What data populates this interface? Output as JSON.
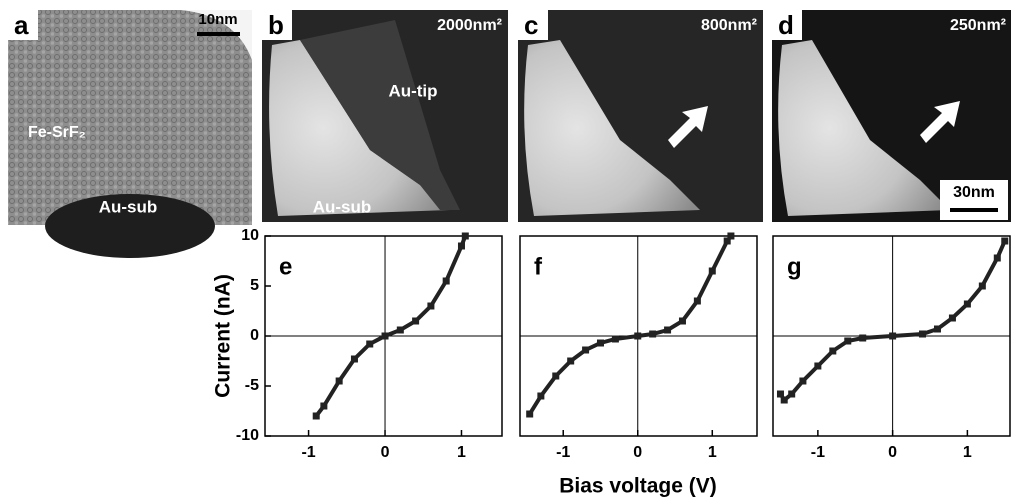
{
  "panels": [
    {
      "label": "a",
      "scale": "10nm",
      "texts": [
        "Fe-SrF₂",
        "Au-sub"
      ]
    },
    {
      "label": "b",
      "area": "2000nm²",
      "texts": [
        "Au-tip",
        "Au-sub"
      ]
    },
    {
      "label": "c",
      "area": "800nm²"
    },
    {
      "label": "d",
      "area": "250nm²",
      "scale": "30nm"
    }
  ],
  "y_label": "Current (nA)",
  "x_label": "Bias voltage (V)",
  "chart_data": [
    {
      "type": "scatter",
      "title": "e",
      "color": "#222222",
      "x": [
        -0.9,
        -0.8,
        -0.6,
        -0.4,
        -0.2,
        0,
        0.2,
        0.4,
        0.6,
        0.8,
        1.0,
        1.05
      ],
      "values": [
        -8,
        -7,
        -4.5,
        -2.3,
        -0.8,
        0,
        0.6,
        1.5,
        3,
        5.5,
        9,
        10
      ],
      "xlim": [
        -1.57,
        1.53
      ],
      "ylim": [
        -10,
        10
      ],
      "xticks": [
        -1,
        0,
        1
      ],
      "yticks": [
        -10,
        -5,
        0,
        5,
        10
      ]
    },
    {
      "type": "scatter",
      "title": "f",
      "color": "#222222",
      "x": [
        -1.45,
        -1.3,
        -1.1,
        -0.9,
        -0.7,
        -0.5,
        -0.3,
        0,
        0.2,
        0.4,
        0.6,
        0.8,
        1.0,
        1.2,
        1.25
      ],
      "values": [
        -7.8,
        -6,
        -4,
        -2.5,
        -1.4,
        -0.7,
        -0.3,
        0,
        0.2,
        0.6,
        1.5,
        3.5,
        6.5,
        9.5,
        10
      ],
      "xlim": [
        -1.58,
        1.6
      ],
      "ylim": [
        -10,
        10
      ],
      "xticks": [
        -1,
        0,
        1
      ]
    },
    {
      "type": "scatter",
      "title": "g",
      "color": "#222222",
      "x": [
        -1.5,
        -1.45,
        -1.35,
        -1.2,
        -1.0,
        -0.8,
        -0.6,
        -0.4,
        0,
        0.4,
        0.6,
        0.8,
        1.0,
        1.2,
        1.4,
        1.5
      ],
      "values": [
        -5.8,
        -6.4,
        -5.8,
        -4.5,
        -3,
        -1.5,
        -0.5,
        -0.2,
        0,
        0.2,
        0.7,
        1.8,
        3.2,
        5,
        7.8,
        9.5
      ],
      "xlim": [
        -1.6,
        1.57
      ],
      "ylim": [
        -10,
        10
      ],
      "xticks": [
        -1,
        0,
        1
      ]
    }
  ]
}
